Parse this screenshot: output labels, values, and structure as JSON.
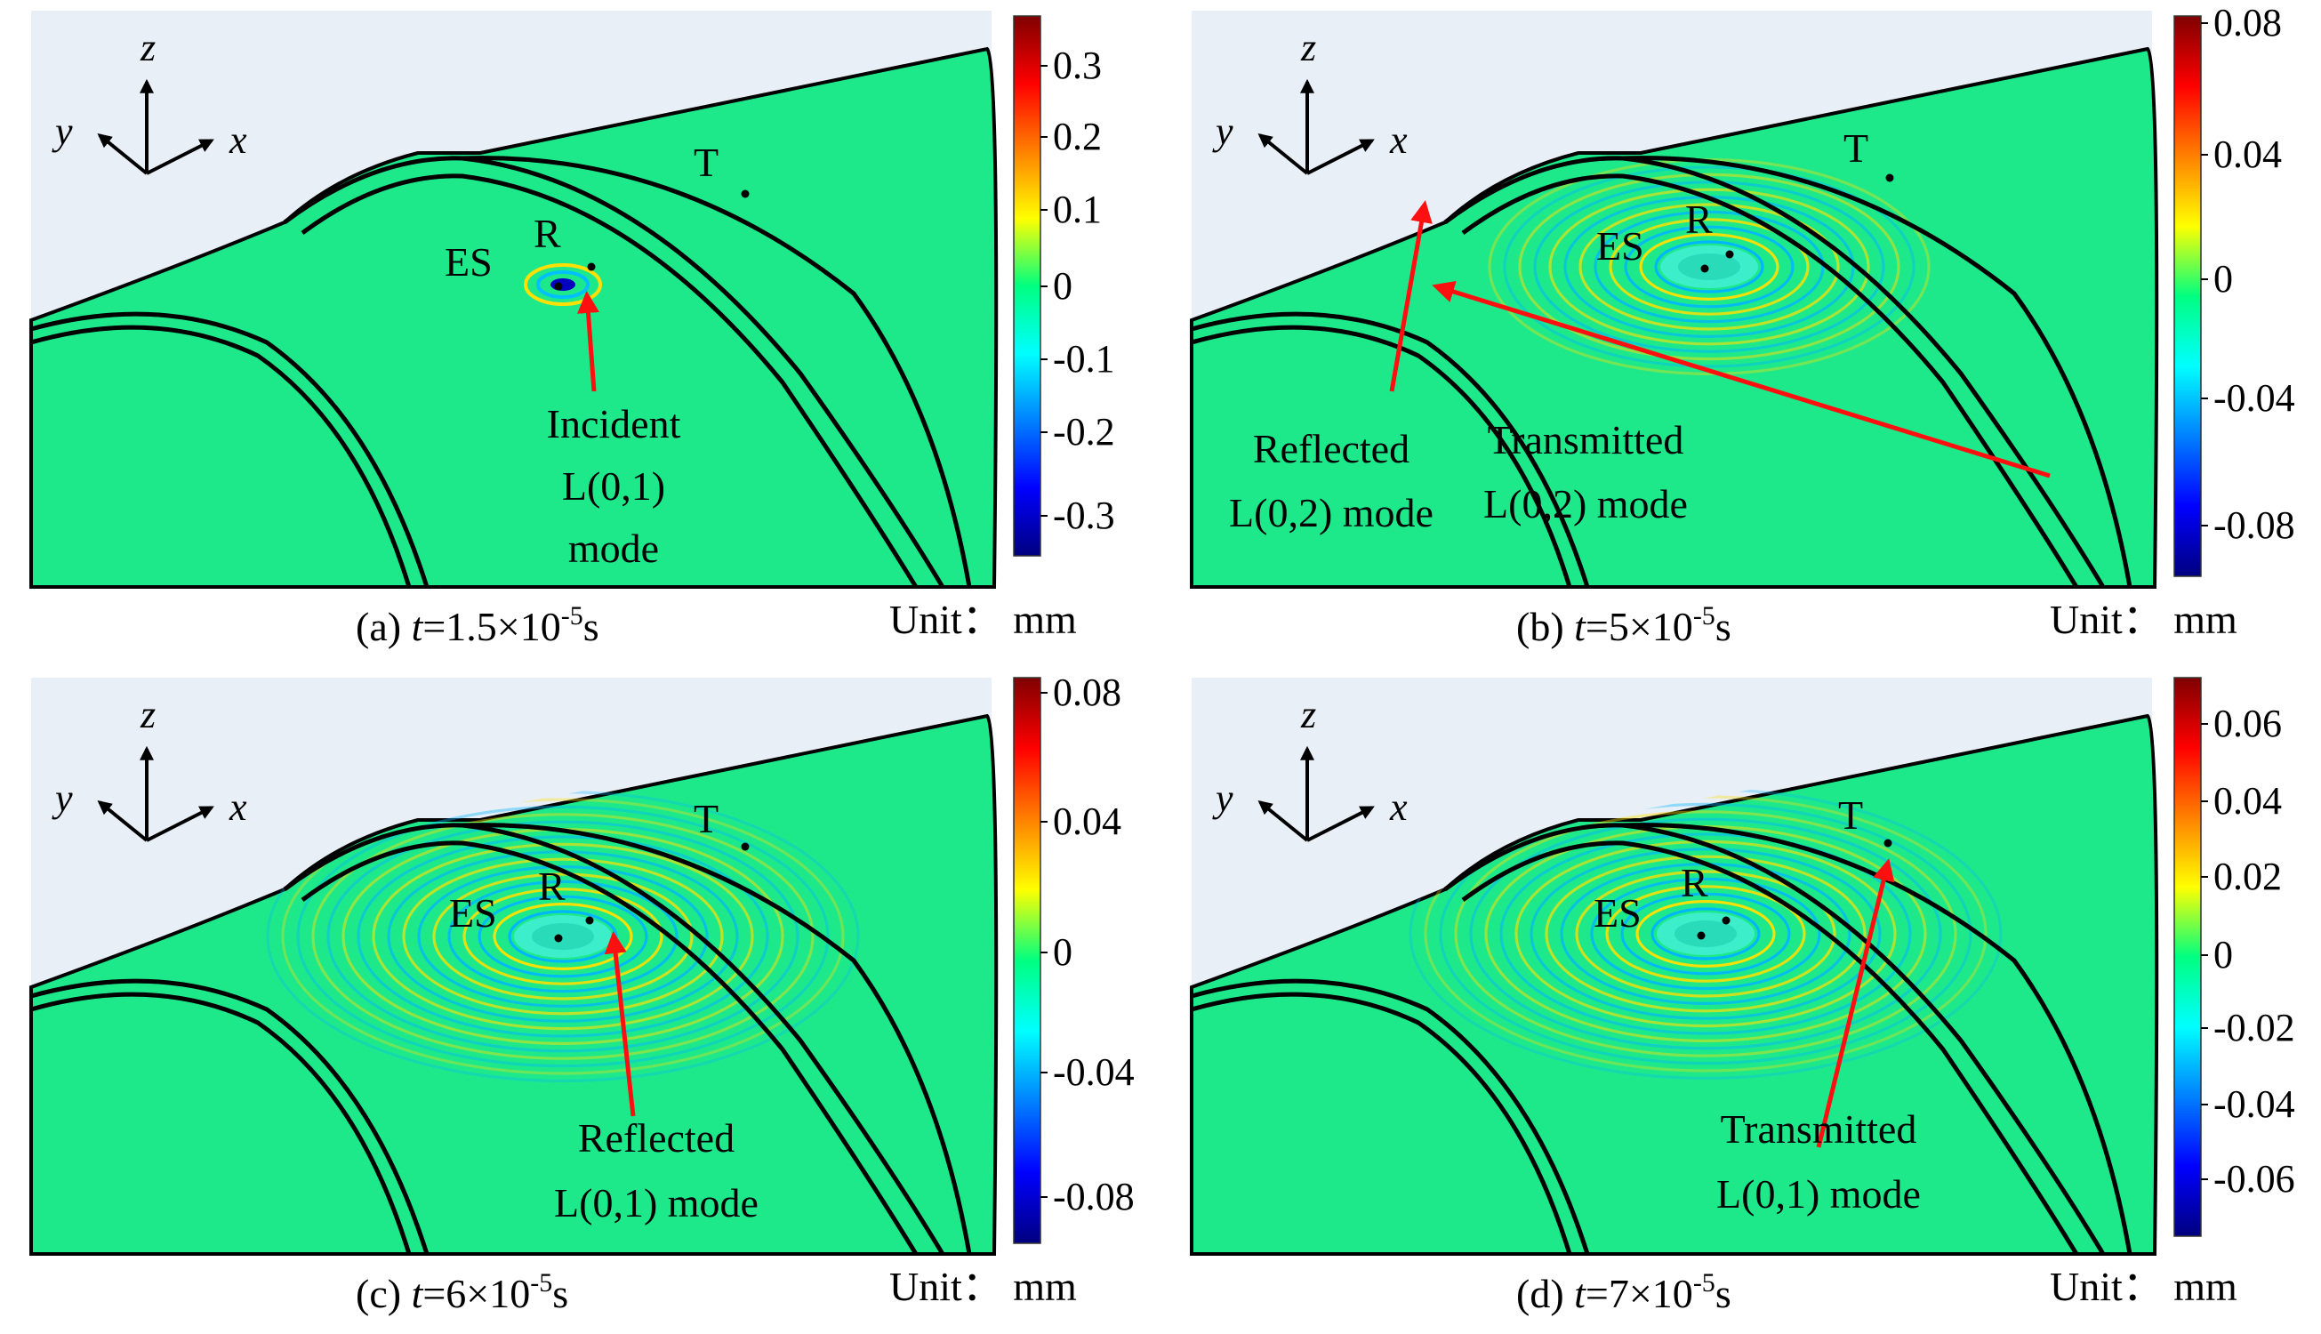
{
  "panels": [
    {
      "id": "a",
      "caption": {
        "prefix": "(a) ",
        "var": "t",
        "eq": "=1.5×10",
        "exp": "-5",
        "unit": "s"
      },
      "unit_label": "Unit：  mm",
      "colorbar_ticks": [
        "0.3",
        "0.2",
        "0.1",
        "0",
        "-0.1",
        "-0.2",
        "-0.3"
      ],
      "points": {
        "ES": "ES",
        "R": "R",
        "T": "T"
      },
      "annotations": [
        {
          "lines": [
            "Incident",
            "L(0,1)",
            "mode"
          ]
        }
      ],
      "wave": "incident"
    },
    {
      "id": "b",
      "caption": {
        "prefix": "(b) ",
        "var": "t",
        "eq": "=5×10",
        "exp": "-5",
        "unit": "s"
      },
      "unit_label": "Unit：  mm",
      "colorbar_ticks": [
        "0.08",
        "0.04",
        "0",
        "-0.04",
        "-0.08"
      ],
      "points": {
        "ES": "ES",
        "R": "R",
        "T": "T"
      },
      "annotations": [
        {
          "lines": [
            "Reflected",
            "L(0,2) mode"
          ]
        },
        {
          "lines": [
            "Transmitted",
            "L(0,2) mode"
          ]
        }
      ],
      "wave": "medium"
    },
    {
      "id": "c",
      "caption": {
        "prefix": "(c) ",
        "var": "t",
        "eq": "=6×10",
        "exp": "-5",
        "unit": "s"
      },
      "unit_label": "Unit：  mm",
      "colorbar_ticks": [
        "0.08",
        "0.04",
        "0",
        "-0.04",
        "-0.08"
      ],
      "points": {
        "ES": "ES",
        "R": "R",
        "T": "T"
      },
      "annotations": [
        {
          "lines": [
            "Reflected",
            "L(0,1) mode"
          ]
        }
      ],
      "wave": "large"
    },
    {
      "id": "d",
      "caption": {
        "prefix": "(d) ",
        "var": "t",
        "eq": "=7×10",
        "exp": "-5",
        "unit": "s"
      },
      "unit_label": "Unit：  mm",
      "colorbar_ticks": [
        "0.06",
        "0.04",
        "0.02",
        "0",
        "-0.02",
        "-0.04",
        "-0.06"
      ],
      "points": {
        "ES": "ES",
        "R": "R",
        "T": "T"
      },
      "annotations": [
        {
          "lines": [
            "Transmitted",
            "L(0,1) mode"
          ]
        }
      ],
      "wave": "large"
    }
  ],
  "axes_labels": {
    "x": "x",
    "y": "y",
    "z": "z"
  },
  "colors": {
    "background_surface": "#1de98b",
    "sky": "#e9eff6",
    "outline": "#000000",
    "arrow": "#ff1010",
    "colormap": [
      "#7f0000",
      "#ff0000",
      "#ff8000",
      "#ffff00",
      "#00ff80",
      "#00ffff",
      "#0080ff",
      "#0000ff",
      "#00007f"
    ]
  }
}
